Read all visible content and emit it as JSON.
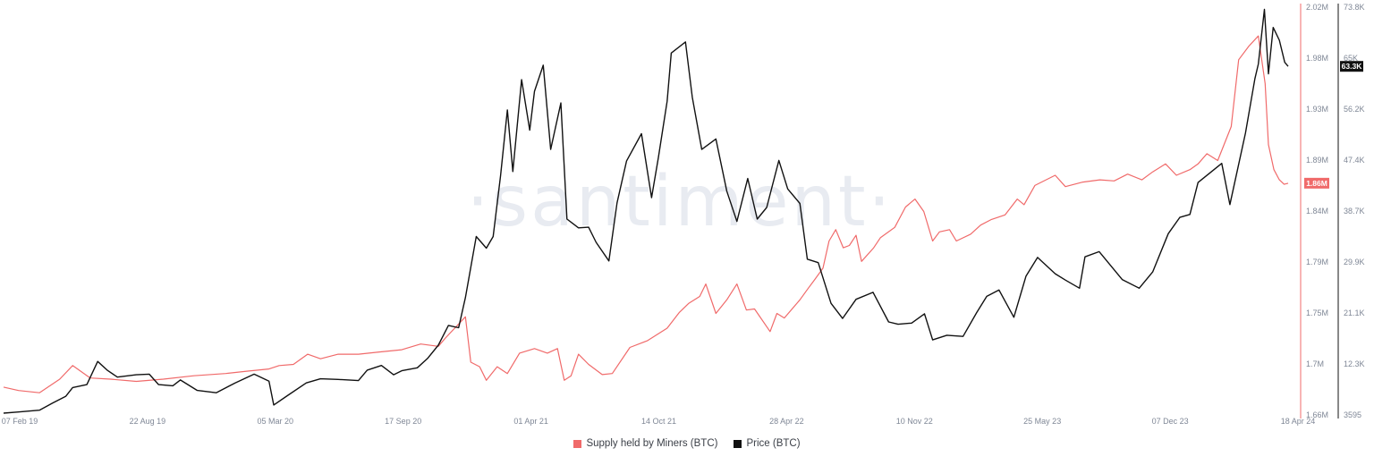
{
  "watermark": "·santiment·",
  "colors": {
    "miners": "#f06a6a",
    "price": "#111111",
    "axis_miners": "#f06a6a",
    "axis_price": "#111111"
  },
  "legend": [
    {
      "label": "Supply held by Miners (BTC)",
      "color": "#f06a6a"
    },
    {
      "label": "Price (BTC)",
      "color": "#111111"
    }
  ],
  "chart_data": {
    "type": "line",
    "title": "",
    "x_ticks": [
      "07 Feb 19",
      "22 Aug 19",
      "05 Mar 20",
      "17 Sep 20",
      "01 Apr 21",
      "14 Oct 21",
      "28 Apr 22",
      "10 Nov 22",
      "25 May 23",
      "07 Dec 23",
      "18 Apr 24"
    ],
    "y_left": {
      "label": "Supply held by Miners (BTC)",
      "ticks": [
        "2.02M",
        "1.98M",
        "1.93M",
        "1.89M",
        "1.84M",
        "1.79M",
        "1.75M",
        "1.7M",
        "1.66M"
      ],
      "range": [
        1.66,
        2.02
      ],
      "unit": "M BTC",
      "current": "1.86M"
    },
    "y_right": {
      "label": "Price (BTC)",
      "ticks": [
        "73.8K",
        "65K",
        "56.2K",
        "47.4K",
        "38.7K",
        "29.9K",
        "21.1K",
        "12.3K",
        "3595"
      ],
      "range": [
        3595,
        73800
      ],
      "unit": "USD",
      "current": "63.3K"
    },
    "series": [
      {
        "name": "Supply held by Miners (BTC)",
        "axis": "left",
        "points": [
          [
            "2019-02-07",
            1.683
          ],
          [
            "2019-03-01",
            1.68
          ],
          [
            "2019-04-01",
            1.678
          ],
          [
            "2019-05-01",
            1.69
          ],
          [
            "2019-05-20",
            1.702
          ],
          [
            "2019-06-15",
            1.691
          ],
          [
            "2019-07-15",
            1.69
          ],
          [
            "2019-08-22",
            1.688
          ],
          [
            "2019-10-01",
            1.69
          ],
          [
            "2019-11-15",
            1.693
          ],
          [
            "2020-01-01",
            1.695
          ],
          [
            "2020-02-01",
            1.697
          ],
          [
            "2020-03-05",
            1.699
          ],
          [
            "2020-03-20",
            1.702
          ],
          [
            "2020-04-10",
            1.703
          ],
          [
            "2020-05-01",
            1.712
          ],
          [
            "2020-05-20",
            1.708
          ],
          [
            "2020-06-15",
            1.712
          ],
          [
            "2020-07-15",
            1.712
          ],
          [
            "2020-08-15",
            1.714
          ],
          [
            "2020-09-17",
            1.716
          ],
          [
            "2020-10-15",
            1.721
          ],
          [
            "2020-11-10",
            1.719
          ],
          [
            "2020-11-20",
            1.726
          ],
          [
            "2020-12-20",
            1.745
          ],
          [
            "2020-12-28",
            1.705
          ],
          [
            "2021-01-10",
            1.701
          ],
          [
            "2021-01-20",
            1.689
          ],
          [
            "2021-02-05",
            1.701
          ],
          [
            "2021-02-20",
            1.695
          ],
          [
            "2021-03-10",
            1.713
          ],
          [
            "2021-04-01",
            1.717
          ],
          [
            "2021-04-20",
            1.713
          ],
          [
            "2021-05-05",
            1.717
          ],
          [
            "2021-05-15",
            1.689
          ],
          [
            "2021-05-25",
            1.693
          ],
          [
            "2021-06-05",
            1.712
          ],
          [
            "2021-06-20",
            1.703
          ],
          [
            "2021-07-10",
            1.694
          ],
          [
            "2021-07-25",
            1.695
          ],
          [
            "2021-08-20",
            1.718
          ],
          [
            "2021-09-15",
            1.724
          ],
          [
            "2021-10-14",
            1.735
          ],
          [
            "2021-11-01",
            1.749
          ],
          [
            "2021-11-15",
            1.757
          ],
          [
            "2021-12-01",
            1.763
          ],
          [
            "2021-12-10",
            1.774
          ],
          [
            "2021-12-25",
            1.748
          ],
          [
            "2022-01-10",
            1.76
          ],
          [
            "2022-01-25",
            1.774
          ],
          [
            "2022-02-08",
            1.751
          ],
          [
            "2022-02-20",
            1.752
          ],
          [
            "2022-03-15",
            1.732
          ],
          [
            "2022-03-25",
            1.748
          ],
          [
            "2022-04-05",
            1.744
          ],
          [
            "2022-04-28",
            1.76
          ],
          [
            "2022-05-10",
            1.77
          ],
          [
            "2022-05-20",
            1.778
          ],
          [
            "2022-06-01",
            1.788
          ],
          [
            "2022-06-10",
            1.812
          ],
          [
            "2022-06-20",
            1.822
          ],
          [
            "2022-07-01",
            1.806
          ],
          [
            "2022-07-10",
            1.808
          ],
          [
            "2022-07-20",
            1.817
          ],
          [
            "2022-07-28",
            1.794
          ],
          [
            "2022-08-15",
            1.806
          ],
          [
            "2022-08-25",
            1.815
          ],
          [
            "2022-09-15",
            1.824
          ],
          [
            "2022-10-01",
            1.842
          ],
          [
            "2022-10-15",
            1.849
          ],
          [
            "2022-10-28",
            1.838
          ],
          [
            "2022-11-10",
            1.812
          ],
          [
            "2022-11-20",
            1.82
          ],
          [
            "2022-12-05",
            1.822
          ],
          [
            "2022-12-15",
            1.812
          ],
          [
            "2023-01-05",
            1.818
          ],
          [
            "2023-01-20",
            1.826
          ],
          [
            "2023-02-05",
            1.831
          ],
          [
            "2023-02-25",
            1.835
          ],
          [
            "2023-03-15",
            1.849
          ],
          [
            "2023-03-25",
            1.844
          ],
          [
            "2023-04-10",
            1.861
          ],
          [
            "2023-05-10",
            1.87
          ],
          [
            "2023-05-25",
            1.86
          ],
          [
            "2023-06-20",
            1.864
          ],
          [
            "2023-07-15",
            1.866
          ],
          [
            "2023-08-05",
            1.865
          ],
          [
            "2023-08-25",
            1.871
          ],
          [
            "2023-09-15",
            1.866
          ],
          [
            "2023-10-01",
            1.873
          ],
          [
            "2023-10-20",
            1.88
          ],
          [
            "2023-11-05",
            1.87
          ],
          [
            "2023-11-25",
            1.875
          ],
          [
            "2023-12-07",
            1.88
          ],
          [
            "2023-12-20",
            1.889
          ],
          [
            "2024-01-05",
            1.883
          ],
          [
            "2024-01-25",
            1.913
          ],
          [
            "2024-02-05",
            1.972
          ],
          [
            "2024-02-20",
            1.984
          ],
          [
            "2024-03-05",
            1.993
          ],
          [
            "2024-03-15",
            1.951
          ],
          [
            "2024-03-20",
            1.897
          ],
          [
            "2024-03-28",
            1.875
          ],
          [
            "2024-04-05",
            1.866
          ],
          [
            "2024-04-12",
            1.862
          ],
          [
            "2024-04-18",
            1.863
          ]
        ]
      },
      {
        "name": "Price (BTC)",
        "axis": "right",
        "points": [
          [
            "2019-02-07",
            3595
          ],
          [
            "2019-03-01",
            3800
          ],
          [
            "2019-04-01",
            4100
          ],
          [
            "2019-04-20",
            5300
          ],
          [
            "2019-05-10",
            6500
          ],
          [
            "2019-05-20",
            8000
          ],
          [
            "2019-06-10",
            8500
          ],
          [
            "2019-06-26",
            12500
          ],
          [
            "2019-07-10",
            11000
          ],
          [
            "2019-07-25",
            9800
          ],
          [
            "2019-08-22",
            10200
          ],
          [
            "2019-09-10",
            10300
          ],
          [
            "2019-09-24",
            8500
          ],
          [
            "2019-10-15",
            8300
          ],
          [
            "2019-10-26",
            9300
          ],
          [
            "2019-11-20",
            7500
          ],
          [
            "2019-12-18",
            7100
          ],
          [
            "2020-01-15",
            8800
          ],
          [
            "2020-02-12",
            10300
          ],
          [
            "2020-03-05",
            9100
          ],
          [
            "2020-03-12",
            5000
          ],
          [
            "2020-04-01",
            6600
          ],
          [
            "2020-04-29",
            8800
          ],
          [
            "2020-05-20",
            9500
          ],
          [
            "2020-06-15",
            9400
          ],
          [
            "2020-07-15",
            9200
          ],
          [
            "2020-07-28",
            11000
          ],
          [
            "2020-08-18",
            11800
          ],
          [
            "2020-09-05",
            10200
          ],
          [
            "2020-09-17",
            10900
          ],
          [
            "2020-10-10",
            11400
          ],
          [
            "2020-10-25",
            13000
          ],
          [
            "2020-11-10",
            15300
          ],
          [
            "2020-11-25",
            18700
          ],
          [
            "2020-12-10",
            18300
          ],
          [
            "2020-12-20",
            23500
          ],
          [
            "2021-01-05",
            34000
          ],
          [
            "2021-01-20",
            32000
          ],
          [
            "2021-01-30",
            34000
          ],
          [
            "2021-02-10",
            44500
          ],
          [
            "2021-02-20",
            55800
          ],
          [
            "2021-02-28",
            45200
          ],
          [
            "2021-03-13",
            61000
          ],
          [
            "2021-03-25",
            52300
          ],
          [
            "2021-04-01",
            59000
          ],
          [
            "2021-04-14",
            63500
          ],
          [
            "2021-04-25",
            49000
          ],
          [
            "2021-05-10",
            57000
          ],
          [
            "2021-05-19",
            37000
          ],
          [
            "2021-06-05",
            35500
          ],
          [
            "2021-06-20",
            35600
          ],
          [
            "2021-07-01",
            33000
          ],
          [
            "2021-07-20",
            29800
          ],
          [
            "2021-08-01",
            39800
          ],
          [
            "2021-08-15",
            47000
          ],
          [
            "2021-09-06",
            51700
          ],
          [
            "2021-09-21",
            40700
          ],
          [
            "2021-10-01",
            47600
          ],
          [
            "2021-10-14",
            57300
          ],
          [
            "2021-10-20",
            65600
          ],
          [
            "2021-11-10",
            67500
          ],
          [
            "2021-11-20",
            58000
          ],
          [
            "2021-12-04",
            49000
          ],
          [
            "2021-12-25",
            50800
          ],
          [
            "2022-01-10",
            41800
          ],
          [
            "2022-01-25",
            36600
          ],
          [
            "2022-02-10",
            44000
          ],
          [
            "2022-02-24",
            37000
          ],
          [
            "2022-03-10",
            39000
          ],
          [
            "2022-03-28",
            47100
          ],
          [
            "2022-04-10",
            42200
          ],
          [
            "2022-04-28",
            39700
          ],
          [
            "2022-05-09",
            30100
          ],
          [
            "2022-05-25",
            29500
          ],
          [
            "2022-06-13",
            22500
          ],
          [
            "2022-06-30",
            19900
          ],
          [
            "2022-07-20",
            23200
          ],
          [
            "2022-08-14",
            24400
          ],
          [
            "2022-09-06",
            19300
          ],
          [
            "2022-09-20",
            18900
          ],
          [
            "2022-10-10",
            19100
          ],
          [
            "2022-10-29",
            20700
          ],
          [
            "2022-11-10",
            16200
          ],
          [
            "2022-12-01",
            17000
          ],
          [
            "2022-12-25",
            16800
          ],
          [
            "2023-01-14",
            20900
          ],
          [
            "2023-01-29",
            23700
          ],
          [
            "2023-02-16",
            24800
          ],
          [
            "2023-03-10",
            20100
          ],
          [
            "2023-03-28",
            27200
          ],
          [
            "2023-04-14",
            30400
          ],
          [
            "2023-05-10",
            27600
          ],
          [
            "2023-05-25",
            26500
          ],
          [
            "2023-06-15",
            25100
          ],
          [
            "2023-06-23",
            30500
          ],
          [
            "2023-07-14",
            31400
          ],
          [
            "2023-08-17",
            26600
          ],
          [
            "2023-09-11",
            25100
          ],
          [
            "2023-10-01",
            27900
          ],
          [
            "2023-10-24",
            34500
          ],
          [
            "2023-11-10",
            37300
          ],
          [
            "2023-11-25",
            37800
          ],
          [
            "2023-12-07",
            43300
          ],
          [
            "2024-01-11",
            46600
          ],
          [
            "2024-01-23",
            39500
          ],
          [
            "2024-02-15",
            51800
          ],
          [
            "2024-02-29",
            61200
          ],
          [
            "2024-03-05",
            63700
          ],
          [
            "2024-03-14",
            73100
          ],
          [
            "2024-03-20",
            62000
          ],
          [
            "2024-03-27",
            70000
          ],
          [
            "2024-04-05",
            67800
          ],
          [
            "2024-04-13",
            64000
          ],
          [
            "2024-04-18",
            63300
          ]
        ]
      }
    ],
    "grid": false,
    "legend_position": "bottom-center"
  }
}
